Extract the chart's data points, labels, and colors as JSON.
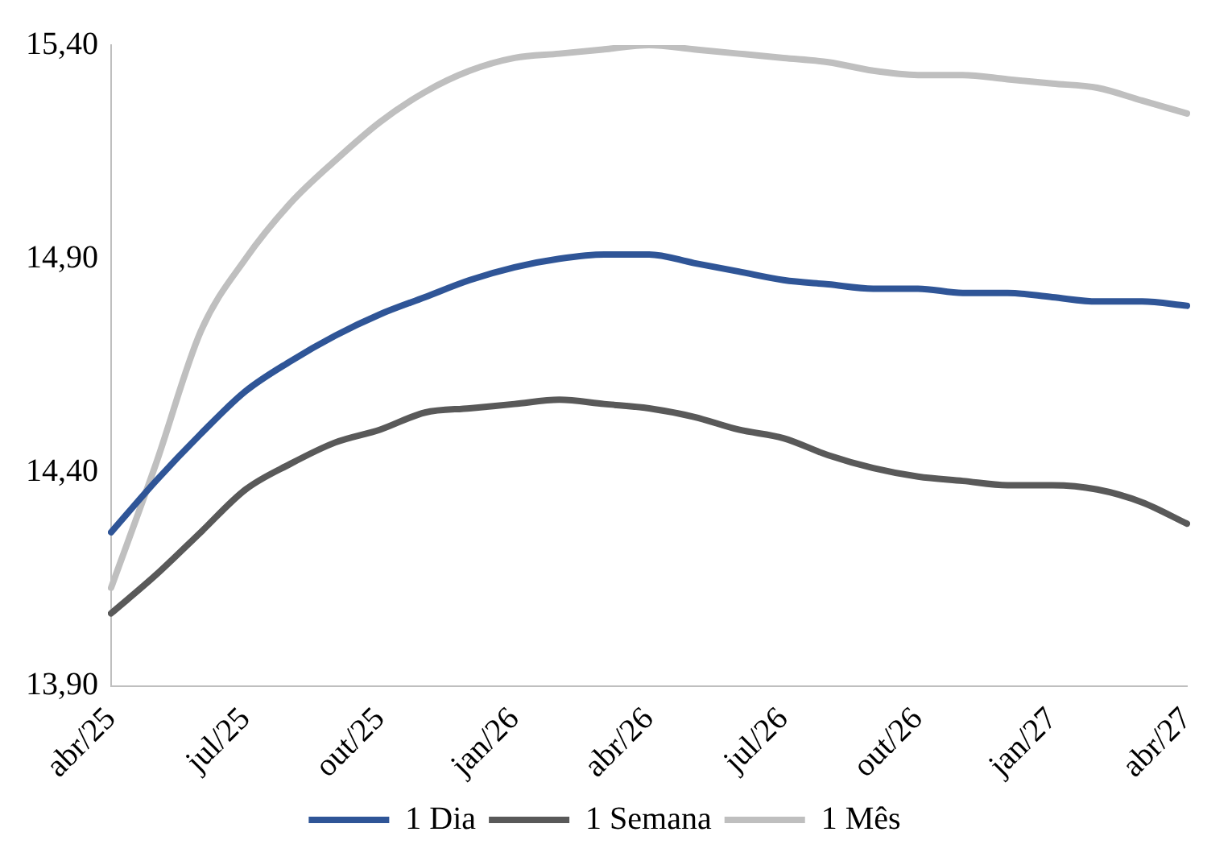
{
  "chart_data": {
    "type": "line",
    "categories": [
      "abr/25",
      null,
      null,
      "jul/25",
      null,
      null,
      "out/25",
      null,
      null,
      "jan/26",
      null,
      null,
      "abr/26",
      null,
      null,
      "jul/26",
      null,
      null,
      "out/26",
      null,
      null,
      "jan/27",
      null,
      null,
      "abr/27"
    ],
    "series": [
      {
        "name": "1 Dia",
        "color": "#2f5597",
        "values": [
          14.26,
          14.38,
          14.49,
          14.59,
          14.66,
          14.72,
          14.77,
          14.81,
          14.85,
          14.88,
          14.9,
          14.91,
          14.91,
          14.89,
          14.87,
          14.85,
          14.84,
          14.83,
          14.83,
          14.82,
          14.82,
          14.81,
          14.8,
          14.8,
          14.79
        ]
      },
      {
        "name": "1 Semana",
        "color": "#595959",
        "values": [
          14.07,
          14.16,
          14.26,
          14.36,
          14.42,
          14.47,
          14.5,
          14.54,
          14.55,
          14.56,
          14.57,
          14.56,
          14.55,
          14.53,
          14.5,
          14.48,
          14.44,
          14.41,
          14.39,
          14.38,
          14.37,
          14.37,
          14.36,
          14.33,
          14.28
        ]
      },
      {
        "name": "1 Mês",
        "color": "#bfbfbf",
        "values": [
          14.13,
          14.42,
          14.73,
          14.9,
          15.03,
          15.13,
          15.22,
          15.29,
          15.34,
          15.37,
          15.38,
          15.39,
          15.4,
          15.39,
          15.38,
          15.37,
          15.36,
          15.34,
          15.33,
          15.33,
          15.32,
          15.31,
          15.3,
          15.27,
          15.24
        ]
      }
    ],
    "ylim": [
      13.9,
      15.4
    ],
    "yticks": [
      {
        "value": 13.9,
        "label": "13,90"
      },
      {
        "value": 14.4,
        "label": "14,40"
      },
      {
        "value": 14.9,
        "label": "14,90"
      },
      {
        "value": 15.4,
        "label": "15,40"
      }
    ],
    "grid": false,
    "legend": "bottom",
    "marker": "none",
    "line_style": "solid"
  }
}
